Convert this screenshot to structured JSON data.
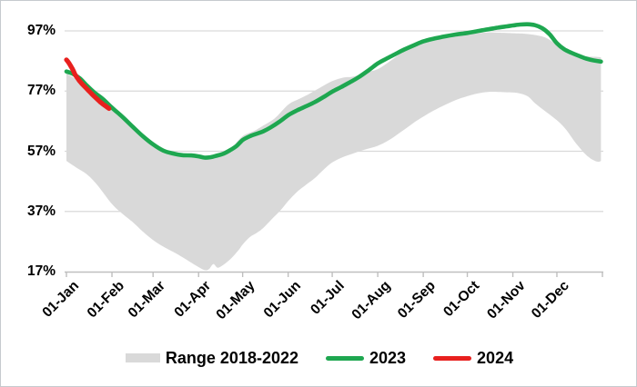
{
  "chart_data": {
    "type": "area+line",
    "title": "",
    "x_unit": "day-of-year",
    "grid": "horizontal",
    "ylim": [
      17,
      97
    ],
    "y_ticks": {
      "labels": [
        "97%",
        "77%",
        "57%",
        "37%",
        "17%"
      ],
      "values": [
        97,
        77,
        57,
        37,
        17
      ]
    },
    "x_ticks": {
      "labels": [
        "01-Jan",
        "01-Feb",
        "01-Mar",
        "01-Apr",
        "01-May",
        "01-Jun",
        "01-Jul",
        "01-Aug",
        "01-Sep",
        "01-Oct",
        "01-Nov",
        "01-Dec"
      ],
      "days": [
        1,
        32,
        60,
        91,
        121,
        152,
        182,
        213,
        244,
        274,
        305,
        335
      ],
      "end_day": 366
    },
    "colors": {
      "band": "#d9d9d9",
      "line2023": "#1ea750",
      "line2024": "#e8201e",
      "gridline": "#d9d9d9",
      "axis": "#bfbfbf",
      "text": "#000000"
    },
    "legend": [
      {
        "label": "Range 2018-2022",
        "swatch": "band"
      },
      {
        "label": "2023",
        "swatch": "line2023"
      },
      {
        "label": "2024",
        "swatch": "line2024"
      }
    ],
    "series": [
      {
        "name": "Range 2018-2022",
        "type": "band",
        "upper": [
          [
            1,
            82.8
          ],
          [
            8,
            80.8
          ],
          [
            15,
            78.2
          ],
          [
            22,
            75.2
          ],
          [
            32,
            71.5
          ],
          [
            39,
            68.5
          ],
          [
            46,
            65
          ],
          [
            53,
            61.8
          ],
          [
            60,
            58.8
          ],
          [
            67,
            56.8
          ],
          [
            74,
            55.8
          ],
          [
            82,
            55.2
          ],
          [
            91,
            55
          ],
          [
            98,
            55.2
          ],
          [
            105,
            55.8
          ],
          [
            113,
            58
          ],
          [
            121,
            62
          ],
          [
            129,
            63.8
          ],
          [
            135,
            65.5
          ],
          [
            143,
            68
          ],
          [
            152,
            72.5
          ],
          [
            160,
            74.5
          ],
          [
            166,
            76
          ],
          [
            174,
            78.2
          ],
          [
            182,
            80.3
          ],
          [
            190,
            81.5
          ],
          [
            196,
            81.8
          ],
          [
            205,
            83.2
          ],
          [
            213,
            84.3
          ],
          [
            221,
            86.8
          ],
          [
            229,
            89.6
          ],
          [
            237,
            91.4
          ],
          [
            244,
            92.8
          ],
          [
            251,
            93.8
          ],
          [
            258,
            94.5
          ],
          [
            266,
            95.3
          ],
          [
            274,
            95.8
          ],
          [
            281,
            96.2
          ],
          [
            288,
            96.5
          ],
          [
            295,
            96.4
          ],
          [
            305,
            96.2
          ],
          [
            312,
            96.1
          ],
          [
            319,
            95.7
          ],
          [
            327,
            94.8
          ],
          [
            335,
            92.5
          ],
          [
            341,
            91
          ],
          [
            347,
            89.5
          ],
          [
            352,
            88.8
          ],
          [
            356,
            88.5
          ],
          [
            361,
            88.4
          ],
          [
            365,
            88.2
          ]
        ],
        "lower": [
          [
            1,
            53.8
          ],
          [
            8,
            51.5
          ],
          [
            15,
            49.3
          ],
          [
            22,
            45.8
          ],
          [
            32,
            39.5
          ],
          [
            39,
            36.3
          ],
          [
            46,
            33.5
          ],
          [
            53,
            30.3
          ],
          [
            60,
            27.5
          ],
          [
            67,
            25.3
          ],
          [
            74,
            23.5
          ],
          [
            80,
            21.8
          ],
          [
            86,
            20
          ],
          [
            91,
            18.5
          ],
          [
            95,
            17.5
          ],
          [
            98,
            17.8
          ],
          [
            101,
            19.5
          ],
          [
            104,
            18.3
          ],
          [
            108,
            19.3
          ],
          [
            113,
            21.3
          ],
          [
            118,
            24
          ],
          [
            121,
            26
          ],
          [
            126,
            28.5
          ],
          [
            131,
            30
          ],
          [
            135,
            31.5
          ],
          [
            141,
            34.5
          ],
          [
            147,
            37.5
          ],
          [
            152,
            40.5
          ],
          [
            158,
            43.5
          ],
          [
            164,
            45.8
          ],
          [
            170,
            48
          ],
          [
            176,
            50.8
          ],
          [
            182,
            53.3
          ],
          [
            189,
            55
          ],
          [
            196,
            56.2
          ],
          [
            204,
            57.5
          ],
          [
            213,
            58.8
          ],
          [
            221,
            60.8
          ],
          [
            229,
            63.5
          ],
          [
            237,
            66.3
          ],
          [
            244,
            68.5
          ],
          [
            251,
            70.5
          ],
          [
            258,
            72.2
          ],
          [
            266,
            74
          ],
          [
            274,
            75.3
          ],
          [
            281,
            76.2
          ],
          [
            288,
            76.7
          ],
          [
            295,
            76.7
          ],
          [
            301,
            76.6
          ],
          [
            308,
            76.4
          ],
          [
            315,
            75.3
          ],
          [
            320,
            73
          ],
          [
            327,
            70.3
          ],
          [
            335,
            67.3
          ],
          [
            341,
            64.3
          ],
          [
            347,
            60.3
          ],
          [
            352,
            57.3
          ],
          [
            356,
            55.3
          ],
          [
            360,
            54
          ],
          [
            363,
            53.5
          ],
          [
            365,
            53.8
          ]
        ]
      },
      {
        "name": "2023",
        "type": "line",
        "points": [
          [
            1,
            83.5
          ],
          [
            5,
            82.8
          ],
          [
            10,
            81.3
          ],
          [
            15,
            78.8
          ],
          [
            20,
            76.5
          ],
          [
            26,
            74.3
          ],
          [
            32,
            71.5
          ],
          [
            39,
            68.5
          ],
          [
            46,
            65.2
          ],
          [
            53,
            62
          ],
          [
            60,
            59.3
          ],
          [
            67,
            57.2
          ],
          [
            74,
            56.2
          ],
          [
            80,
            55.7
          ],
          [
            86,
            55.6
          ],
          [
            91,
            55.3
          ],
          [
            95,
            54.9
          ],
          [
            99,
            55
          ],
          [
            103,
            55.5
          ],
          [
            108,
            56.2
          ],
          [
            113,
            57.5
          ],
          [
            117,
            58.8
          ],
          [
            121,
            60.7
          ],
          [
            126,
            62
          ],
          [
            131,
            62.9
          ],
          [
            135,
            63.6
          ],
          [
            140,
            64.9
          ],
          [
            146,
            66.8
          ],
          [
            152,
            69
          ],
          [
            158,
            70.6
          ],
          [
            164,
            71.9
          ],
          [
            170,
            73.3
          ],
          [
            176,
            75
          ],
          [
            182,
            76.8
          ],
          [
            188,
            78.3
          ],
          [
            194,
            79.9
          ],
          [
            200,
            81.6
          ],
          [
            207,
            84
          ],
          [
            213,
            86.2
          ],
          [
            219,
            87.8
          ],
          [
            225,
            89.3
          ],
          [
            231,
            90.8
          ],
          [
            238,
            92.3
          ],
          [
            244,
            93.5
          ],
          [
            251,
            94.4
          ],
          [
            258,
            95.1
          ],
          [
            266,
            95.8
          ],
          [
            274,
            96.3
          ],
          [
            281,
            96.9
          ],
          [
            288,
            97.5
          ],
          [
            295,
            98.1
          ],
          [
            301,
            98.5
          ],
          [
            305,
            98.8
          ],
          [
            310,
            99.1
          ],
          [
            315,
            99.2
          ],
          [
            320,
            98.9
          ],
          [
            325,
            97.9
          ],
          [
            330,
            95.9
          ],
          [
            335,
            92.9
          ],
          [
            340,
            90.9
          ],
          [
            345,
            89.7
          ],
          [
            350,
            88.7
          ],
          [
            355,
            87.8
          ],
          [
            360,
            87.2
          ],
          [
            365,
            86.8
          ]
        ]
      },
      {
        "name": "2024",
        "type": "line",
        "points": [
          [
            1,
            87.4
          ],
          [
            2,
            86.8
          ],
          [
            3,
            86.1
          ],
          [
            4,
            85.3
          ],
          [
            5,
            84.4
          ],
          [
            6,
            83.4
          ],
          [
            7,
            82.4
          ],
          [
            8,
            81.7
          ],
          [
            9,
            81
          ],
          [
            10,
            80.3
          ],
          [
            12,
            79.2
          ],
          [
            14,
            78.2
          ],
          [
            16,
            77.2
          ],
          [
            18,
            76.2
          ],
          [
            20,
            75.2
          ],
          [
            22,
            74.3
          ],
          [
            24,
            73.4
          ],
          [
            26,
            72.6
          ],
          [
            28,
            71.9
          ],
          [
            30,
            71.2
          ]
        ]
      }
    ]
  }
}
